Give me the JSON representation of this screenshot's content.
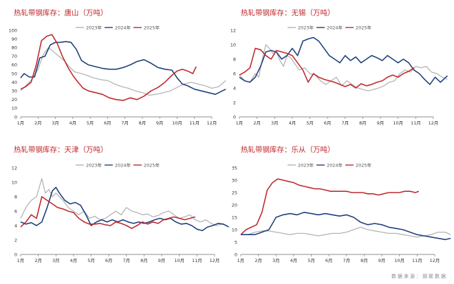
{
  "source_text": "数据来源：钢联数据",
  "colors": {
    "2023": "#b4b4b4",
    "2024": "#1f3f7a",
    "2025": "#c0282d"
  },
  "chart_data": [
    {
      "type": "line",
      "title": "热轧带钢库存：唐山（万吨）",
      "ylim": [
        0,
        100
      ],
      "yticks": [
        0,
        10,
        20,
        30,
        40,
        50,
        60,
        70,
        80,
        90,
        100
      ],
      "xlabels": [
        "1月",
        "2月",
        "3月",
        "4月",
        "5月",
        "6月",
        "7月",
        "8月",
        "9月",
        "10月",
        "11月",
        "12月"
      ],
      "series": [
        {
          "name": "2023年",
          "key": "2023",
          "x": [
            0,
            0.3,
            0.6,
            1.0,
            1.3,
            1.6,
            1.9,
            2.2,
            2.5,
            2.8,
            3.1,
            3.5,
            3.8,
            4.2,
            4.6,
            5.0,
            5.4,
            5.8,
            6.2,
            6.6,
            7.0,
            7.4,
            7.8,
            8.2,
            8.6,
            9.0,
            9.4,
            9.8,
            10.2,
            10.6,
            11.0,
            11.4,
            11.8
          ],
          "values": [
            30,
            36,
            42,
            55,
            72,
            80,
            75,
            70,
            65,
            58,
            52,
            50,
            48,
            45,
            43,
            42,
            38,
            35,
            33,
            30,
            28,
            25,
            26,
            28,
            30,
            34,
            38,
            40,
            38,
            36,
            33,
            35,
            42
          ]
        },
        {
          "name": "2024年",
          "key": "2024",
          "x": [
            0,
            0.2,
            0.5,
            0.8,
            1.1,
            1.4,
            1.7,
            2.0,
            2.3,
            2.6,
            2.9,
            3.2,
            3.5,
            3.9,
            4.3,
            4.7,
            5.1,
            5.5,
            5.9,
            6.3,
            6.7,
            7.1,
            7.5,
            7.9,
            8.3,
            8.7,
            9.0,
            9.3,
            9.6,
            10.0,
            10.4,
            10.8,
            11.2,
            11.6,
            11.8
          ],
          "values": [
            45,
            50,
            46,
            46,
            68,
            70,
            83,
            86,
            86,
            87,
            86,
            78,
            65,
            60,
            58,
            56,
            55,
            55,
            57,
            60,
            64,
            66,
            62,
            57,
            55,
            54,
            45,
            38,
            36,
            32,
            30,
            28,
            26,
            30,
            32
          ]
        },
        {
          "name": "2025年",
          "key": "2025",
          "x": [
            0,
            0.3,
            0.6,
            0.9,
            1.2,
            1.5,
            1.8,
            2.1,
            2.4,
            2.7,
            3.0,
            3.3,
            3.6,
            3.9,
            4.3,
            4.7,
            5.1,
            5.5,
            5.9,
            6.3,
            6.7,
            7.1,
            7.5,
            7.9,
            8.3,
            8.7,
            9.0,
            9.3,
            9.6,
            9.9,
            10.1
          ],
          "values": [
            32,
            35,
            40,
            60,
            88,
            93,
            95,
            85,
            70,
            58,
            48,
            40,
            33,
            30,
            28,
            26,
            22,
            20,
            19,
            22,
            20,
            24,
            30,
            34,
            40,
            48,
            53,
            55,
            53,
            50,
            58
          ]
        }
      ]
    },
    {
      "type": "line",
      "title": "热轧带钢库存：无锡（万吨）",
      "ylim": [
        0,
        12
      ],
      "yticks": [
        0,
        2,
        4,
        6,
        8,
        10,
        12
      ],
      "xlabels": [
        "1月",
        "2月",
        "3月",
        "4月",
        "5月",
        "6月",
        "7月",
        "8月",
        "9月",
        "10月",
        "11月",
        "12月"
      ],
      "series": [
        {
          "name": "2023年",
          "key": "2023",
          "x": [
            0,
            0.3,
            0.6,
            0.9,
            1.1,
            1.3,
            1.5,
            1.7,
            1.9,
            2.1,
            2.3,
            2.5,
            2.7,
            2.9,
            3.1,
            3.4,
            3.7,
            4.0,
            4.3,
            4.6,
            4.9,
            5.2,
            5.5,
            5.8,
            6.1,
            6.4,
            6.7,
            7.0,
            7.3,
            7.6,
            7.9,
            8.2,
            8.5,
            8.8,
            9.1,
            9.4,
            9.7,
            10.0,
            10.3,
            10.6,
            10.9,
            11.2,
            11.5,
            11.8
          ],
          "values": [
            5.8,
            5.0,
            4.8,
            6.0,
            5.5,
            8.0,
            10.0,
            9.5,
            8.8,
            9.0,
            7.8,
            7.0,
            8.5,
            8.2,
            7.5,
            6.5,
            6.8,
            6.0,
            5.8,
            5.0,
            4.5,
            5.0,
            5.5,
            4.3,
            5.0,
            4.5,
            4.0,
            3.8,
            3.6,
            3.8,
            4.0,
            4.3,
            4.8,
            5.0,
            6.0,
            6.5,
            6.2,
            7.0,
            6.8,
            7.0,
            6.2,
            6.0,
            5.5,
            5.2
          ]
        },
        {
          "name": "2024年",
          "key": "2024",
          "x": [
            0,
            0.3,
            0.6,
            0.9,
            1.2,
            1.5,
            1.8,
            2.1,
            2.4,
            2.7,
            3.0,
            3.3,
            3.6,
            3.9,
            4.2,
            4.5,
            4.8,
            5.1,
            5.4,
            5.7,
            6.0,
            6.3,
            6.6,
            6.9,
            7.2,
            7.5,
            7.8,
            8.1,
            8.4,
            8.7,
            9.0,
            9.3,
            9.6,
            9.9,
            10.2,
            10.5,
            10.8,
            11.1,
            11.4,
            11.8
          ],
          "values": [
            5.5,
            5.0,
            4.8,
            5.5,
            7.0,
            9.0,
            9.2,
            9.0,
            8.0,
            8.5,
            9.5,
            8.5,
            10.5,
            10.8,
            11.0,
            10.5,
            9.5,
            8.5,
            8.0,
            7.5,
            8.5,
            7.8,
            8.3,
            7.5,
            8.0,
            8.5,
            8.2,
            7.8,
            8.5,
            8.0,
            7.5,
            8.0,
            7.5,
            6.5,
            6.0,
            5.2,
            4.5,
            5.5,
            4.8,
            5.7
          ]
        },
        {
          "name": "2025年",
          "key": "2025",
          "x": [
            0,
            0.3,
            0.6,
            0.9,
            1.2,
            1.5,
            1.8,
            2.1,
            2.4,
            2.7,
            3.0,
            3.3,
            3.6,
            3.9,
            4.2,
            4.5,
            4.8,
            5.1,
            5.4,
            5.7,
            6.0,
            6.3,
            6.6,
            6.9,
            7.2,
            7.5,
            7.8,
            8.1,
            8.4,
            8.7,
            9.0,
            9.3,
            9.6,
            9.9
          ],
          "values": [
            5.8,
            6.2,
            6.8,
            9.5,
            9.3,
            8.5,
            8.0,
            9.2,
            9.0,
            8.8,
            8.5,
            7.5,
            6.5,
            4.8,
            6.0,
            5.5,
            5.2,
            5.0,
            4.8,
            4.5,
            4.2,
            4.5,
            4.0,
            4.6,
            4.3,
            4.5,
            4.8,
            5.0,
            5.5,
            5.8,
            5.5,
            6.0,
            6.3,
            6.8
          ]
        }
      ]
    },
    {
      "type": "line",
      "title": "热轧带钢库存：天津（万吨）",
      "ylim": [
        0,
        12
      ],
      "yticks": [
        0,
        2,
        4,
        6,
        8,
        10,
        12
      ],
      "xlabels": [
        "1月",
        "2月",
        "3月",
        "4月",
        "5月",
        "6月",
        "7月",
        "8月",
        "9月",
        "10月",
        "11月",
        "12月"
      ],
      "series": [
        {
          "name": "2023年",
          "key": "2023",
          "x": [
            0,
            0.3,
            0.6,
            0.9,
            1.2,
            1.4,
            1.6,
            1.8,
            2.0,
            2.2,
            2.4,
            2.7,
            3.0,
            3.3,
            3.6,
            3.9,
            4.2,
            4.5,
            4.8,
            5.1,
            5.4,
            5.7,
            6.0,
            6.3,
            6.6,
            6.9,
            7.2,
            7.5,
            7.8,
            8.1,
            8.4,
            8.7,
            9.0,
            9.3,
            9.6,
            9.9,
            10.2,
            10.5,
            10.8,
            11.1,
            11.4,
            11.7
          ],
          "values": [
            5.0,
            6.5,
            7.5,
            8.0,
            10.5,
            8.5,
            9.0,
            8.0,
            8.5,
            8.0,
            7.5,
            6.5,
            6.0,
            5.5,
            6.0,
            5.0,
            5.3,
            4.8,
            5.0,
            5.5,
            6.0,
            5.5,
            6.5,
            6.0,
            5.8,
            5.5,
            5.6,
            5.2,
            5.4,
            5.8,
            6.0,
            5.5,
            5.0,
            5.2,
            5.5,
            4.8,
            4.5,
            4.8,
            4.3,
            4.0,
            4.2,
            4.0
          ]
        },
        {
          "name": "2024年",
          "key": "2024",
          "x": [
            0,
            0.3,
            0.6,
            0.9,
            1.2,
            1.5,
            1.8,
            2.0,
            2.2,
            2.5,
            2.8,
            3.1,
            3.4,
            3.7,
            4.0,
            4.3,
            4.6,
            4.9,
            5.2,
            5.5,
            5.8,
            6.1,
            6.4,
            6.7,
            7.0,
            7.3,
            7.6,
            7.9,
            8.2,
            8.5,
            8.8,
            9.1,
            9.4,
            9.7,
            10.0,
            10.3,
            10.6,
            10.9,
            11.2,
            11.5,
            11.8
          ],
          "values": [
            4.5,
            4.2,
            4.4,
            4.0,
            4.5,
            6.5,
            8.8,
            9.3,
            8.5,
            7.5,
            7.0,
            7.2,
            6.8,
            5.5,
            4.0,
            4.5,
            4.8,
            4.5,
            4.8,
            4.5,
            4.8,
            4.5,
            4.3,
            4.5,
            4.3,
            4.5,
            4.8,
            5.0,
            4.8,
            5.0,
            4.5,
            4.2,
            4.3,
            4.0,
            3.5,
            3.3,
            3.8,
            4.0,
            4.3,
            4.2,
            3.8
          ]
        },
        {
          "name": "2025年",
          "key": "2025",
          "x": [
            0,
            0.3,
            0.6,
            0.9,
            1.2,
            1.5,
            1.8,
            2.1,
            2.4,
            2.7,
            3.0,
            3.3,
            3.6,
            3.9,
            4.2,
            4.5,
            4.8,
            5.1,
            5.4,
            5.7,
            6.0,
            6.3,
            6.6,
            6.9,
            7.2,
            7.5,
            7.8,
            8.1,
            8.4,
            8.7,
            9.0,
            9.3,
            9.6,
            9.9
          ],
          "values": [
            3.8,
            4.5,
            5.5,
            5.0,
            8.0,
            7.5,
            7.0,
            6.5,
            6.3,
            6.0,
            5.8,
            5.0,
            4.5,
            4.2,
            4.2,
            4.3,
            4.1,
            4.0,
            4.5,
            4.3,
            4.0,
            3.6,
            4.0,
            4.5,
            4.2,
            4.5,
            4.3,
            4.8,
            5.0,
            5.2,
            5.0,
            4.8,
            5.0,
            5.2
          ]
        }
      ]
    },
    {
      "type": "line",
      "title": "热轧带钢库存：乐从（万吨）",
      "ylim": [
        0,
        35
      ],
      "yticks": [
        0,
        5,
        10,
        15,
        20,
        25,
        30,
        35
      ],
      "xlabels": [
        "1月",
        "2月",
        "3月",
        "4月",
        "5月",
        "6月",
        "7月",
        "8月",
        "9月",
        "10月",
        "11月",
        "12月"
      ],
      "series": [
        {
          "name": "2023年",
          "key": "2023",
          "x": [
            0,
            0.4,
            0.8,
            1.2,
            1.6,
            2.0,
            2.4,
            2.8,
            3.2,
            3.6,
            4.0,
            4.4,
            4.8,
            5.2,
            5.6,
            6.0,
            6.4,
            6.8,
            7.2,
            7.6,
            8.0,
            8.4,
            8.8,
            9.2,
            9.6,
            10.0,
            10.4,
            10.8,
            11.2,
            11.6,
            11.9
          ],
          "values": [
            8,
            8,
            9,
            9.5,
            9.5,
            9,
            8.5,
            8,
            8.5,
            8.5,
            8,
            7.5,
            8,
            8.5,
            8.5,
            9,
            10,
            11,
            10,
            9.5,
            9,
            8.5,
            8.5,
            8,
            7.5,
            7,
            7.5,
            8,
            9,
            9,
            8
          ]
        },
        {
          "name": "2024年",
          "key": "2024",
          "x": [
            0,
            0.4,
            0.8,
            1.2,
            1.6,
            2.0,
            2.4,
            2.8,
            3.2,
            3.6,
            4.0,
            4.4,
            4.8,
            5.2,
            5.6,
            6.0,
            6.4,
            6.8,
            7.2,
            7.6,
            8.0,
            8.4,
            8.8,
            9.2,
            9.6,
            10.0,
            10.4,
            10.8,
            11.2,
            11.6,
            11.9
          ],
          "values": [
            8,
            8,
            8,
            9,
            10,
            15,
            16,
            16.5,
            16,
            17,
            16.5,
            16,
            16.5,
            16,
            15.5,
            16,
            15,
            13,
            12,
            12.5,
            12,
            11,
            10.5,
            10,
            9,
            8,
            7.5,
            7,
            6.5,
            6,
            6.5
          ]
        },
        {
          "name": "2025年",
          "key": "2025",
          "x": [
            0,
            0.3,
            0.6,
            0.9,
            1.2,
            1.5,
            1.8,
            2.1,
            2.4,
            2.7,
            3.0,
            3.3,
            3.6,
            3.9,
            4.2,
            4.5,
            4.8,
            5.1,
            5.4,
            5.7,
            6.0,
            6.3,
            6.6,
            6.9,
            7.2,
            7.5,
            7.8,
            8.1,
            8.4,
            8.7,
            9.0,
            9.3,
            9.6,
            9.9,
            10.1
          ],
          "values": [
            8,
            10,
            11,
            12,
            17,
            26,
            29,
            30.5,
            30,
            29.5,
            29,
            28,
            27.5,
            27,
            26.5,
            26.5,
            26,
            25.5,
            25.5,
            25.5,
            25.5,
            25,
            25,
            25,
            24.5,
            24.5,
            24,
            24.5,
            25,
            25,
            25,
            25.5,
            25.5,
            25,
            25.5
          ]
        }
      ]
    }
  ]
}
